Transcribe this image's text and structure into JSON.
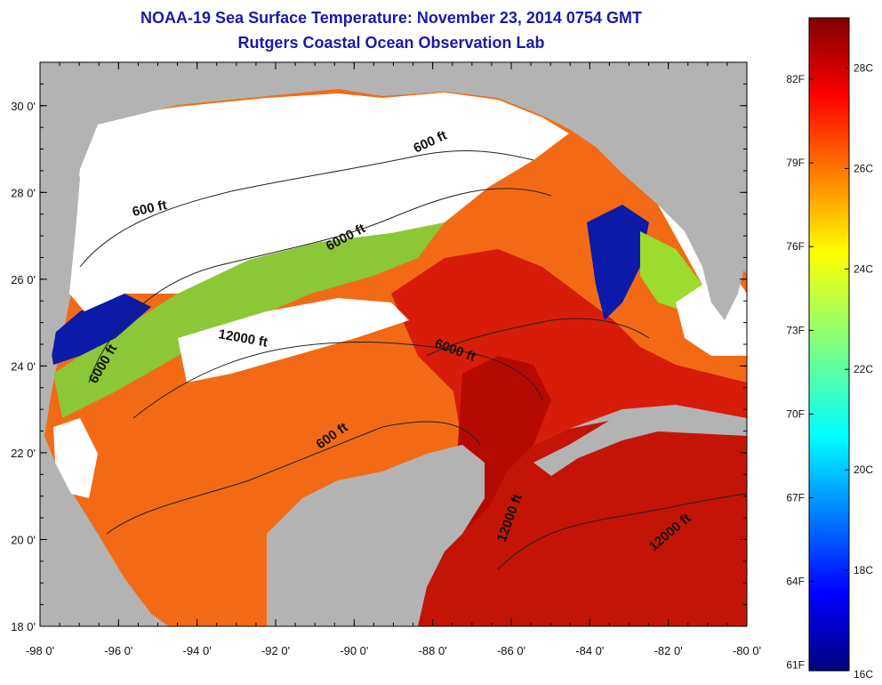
{
  "title": "NOAA-19 Sea Surface Temperature:  November 23, 2014 0754 GMT",
  "subtitle": "Rutgers Coastal Ocean Observation Lab",
  "map": {
    "lat_range": [
      18,
      31
    ],
    "lon_range": [
      -98,
      -80
    ],
    "lat_ticks": [
      {
        "value": 30,
        "label": "30 0'"
      },
      {
        "value": 28,
        "label": "28 0'"
      },
      {
        "value": 26,
        "label": "26 0'"
      },
      {
        "value": 24,
        "label": "24 0'"
      },
      {
        "value": 22,
        "label": "22 0'"
      },
      {
        "value": 20,
        "label": "20 0'"
      },
      {
        "value": 18,
        "label": "18 0'"
      }
    ],
    "lon_ticks": [
      {
        "value": -98,
        "label": "-98 0'"
      },
      {
        "value": -96,
        "label": "-96 0'"
      },
      {
        "value": -94,
        "label": "-94 0'"
      },
      {
        "value": -92,
        "label": "-92 0'"
      },
      {
        "value": -90,
        "label": "-90 0'"
      },
      {
        "value": -88,
        "label": "-88 0'"
      },
      {
        "value": -86,
        "label": "-86 0'"
      },
      {
        "value": -84,
        "label": "-84 0'"
      },
      {
        "value": -82,
        "label": "-82 0'"
      },
      {
        "value": -80,
        "label": "-80 0'"
      }
    ],
    "contour_labels": [
      "600 ft",
      "6000 ft",
      "600 ft",
      "12000 ft",
      "6000 ft",
      "6000 ft",
      "600 ft",
      "12000 ft",
      "12000 ft"
    ],
    "colors": {
      "land": "#b3b3b3",
      "cloud": "#ffffff",
      "warm": "#d41a08",
      "hot": "#b30000",
      "mid": "#ff6a10",
      "cool": "#0a18a0"
    }
  },
  "colorbar": {
    "celsius_range": [
      16,
      29
    ],
    "celsius_labels": [
      "28C",
      "26C",
      "24C",
      "22C",
      "20C",
      "18C",
      "16C"
    ],
    "fahrenheit_labels": [
      "82F",
      "79F",
      "76F",
      "73F",
      "70F",
      "67F",
      "64F",
      "61F"
    ]
  }
}
